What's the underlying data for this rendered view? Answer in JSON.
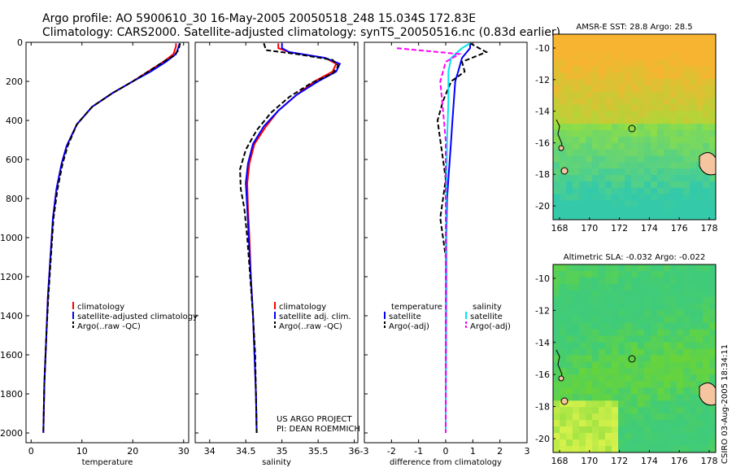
{
  "header": {
    "line1": "Argo profile: AO 5900610_30 16-May-2005 20050518_248 15.034S 172.83E",
    "line2": "Climatology: CARS2000. Satellite-adjusted climatology: synTS_20050516.nc (0.83d earlier)"
  },
  "side_label": "CSIRO 03-Aug-2005 18:34:11",
  "colors": {
    "climatology": "#ff0000",
    "satellite": "#0000ff",
    "argo": "#000000",
    "salinity_satellite": "#00e5ee",
    "salinity_argo": "#ff00ff"
  },
  "chart_data": [
    {
      "type": "line",
      "xlabel": "temperature",
      "ylabel": "",
      "xlim": [
        -1,
        31
      ],
      "ylim": [
        2050,
        0
      ],
      "xticks": [
        0,
        10,
        20,
        30
      ],
      "yticks": [
        0,
        200,
        400,
        600,
        800,
        1000,
        1200,
        1400,
        1600,
        1800,
        2000
      ],
      "legend": [
        "climatology",
        "satellite-adjusted climatology",
        "Argo(..raw -QC)"
      ],
      "series": [
        {
          "name": "climatology",
          "color": "#ff0000",
          "dash": "",
          "values": [
            [
              28.5,
              5
            ],
            [
              28.5,
              20
            ],
            [
              28,
              60
            ],
            [
              26,
              100
            ],
            [
              23,
              150
            ],
            [
              20,
              200
            ],
            [
              16,
              260
            ],
            [
              12,
              330
            ],
            [
              9,
              420
            ],
            [
              7,
              530
            ],
            [
              6,
              620
            ],
            [
              5,
              750
            ],
            [
              4.3,
              900
            ],
            [
              3.8,
              1100
            ],
            [
              3.3,
              1300
            ],
            [
              3,
              1500
            ],
            [
              2.6,
              1750
            ],
            [
              2.4,
              2000
            ]
          ]
        },
        {
          "name": "satellite-adjusted climatology",
          "color": "#0000ff",
          "dash": "",
          "values": [
            [
              29.2,
              5
            ],
            [
              29,
              25
            ],
            [
              28.5,
              60
            ],
            [
              26.5,
              100
            ],
            [
              23.5,
              150
            ],
            [
              20,
              200
            ],
            [
              16,
              260
            ],
            [
              12,
              330
            ],
            [
              9,
              420
            ],
            [
              7,
              530
            ],
            [
              6,
              620
            ],
            [
              5,
              750
            ],
            [
              4.3,
              900
            ],
            [
              3.8,
              1100
            ],
            [
              3.3,
              1300
            ],
            [
              3,
              1500
            ],
            [
              2.6,
              1750
            ],
            [
              2.4,
              2000
            ]
          ]
        },
        {
          "name": "Argo(..raw -QC)",
          "color": "#000000",
          "dash": "6,3",
          "values": [
            [
              29.3,
              5
            ],
            [
              29,
              40
            ],
            [
              28,
              70
            ],
            [
              26,
              100
            ],
            [
              23,
              150
            ],
            [
              20,
              200
            ],
            [
              16,
              260
            ],
            [
              12,
              330
            ],
            [
              9,
              420
            ],
            [
              7.2,
              530
            ],
            [
              6.2,
              620
            ],
            [
              5.2,
              750
            ],
            [
              4.4,
              900
            ],
            [
              3.9,
              1100
            ],
            [
              3.4,
              1300
            ],
            [
              3,
              1500
            ],
            [
              2.6,
              1750
            ],
            [
              2.4,
              2000
            ]
          ]
        }
      ]
    },
    {
      "type": "line",
      "xlabel": "salinity",
      "ylabel": "",
      "xlim": [
        33.8,
        36.05
      ],
      "ylim": [
        2050,
        0
      ],
      "xticks": [
        34,
        34.5,
        35,
        35.5,
        36
      ],
      "annotation": [
        "US ARGO PROJECT",
        "PI: DEAN ROEMMICH"
      ],
      "legend": [
        "climatology",
        "satellite adj. clim.",
        "Argo(..raw -QC)"
      ],
      "series": [
        {
          "name": "climatology",
          "color": "#ff0000",
          "dash": "",
          "values": [
            [
              34.95,
              5
            ],
            [
              34.95,
              30
            ],
            [
              35.1,
              50
            ],
            [
              35.6,
              80
            ],
            [
              35.75,
              110
            ],
            [
              35.7,
              150
            ],
            [
              35.45,
              200
            ],
            [
              35.2,
              270
            ],
            [
              34.95,
              350
            ],
            [
              34.78,
              430
            ],
            [
              34.62,
              520
            ],
            [
              34.55,
              620
            ],
            [
              34.52,
              720
            ],
            [
              34.53,
              850
            ],
            [
              34.55,
              1000
            ],
            [
              34.57,
              1200
            ],
            [
              34.6,
              1400
            ],
            [
              34.62,
              1600
            ],
            [
              34.64,
              1800
            ],
            [
              34.65,
              2000
            ]
          ]
        },
        {
          "name": "satellite adj. clim.",
          "color": "#0000ff",
          "dash": "",
          "values": [
            [
              35,
              5
            ],
            [
              35,
              30
            ],
            [
              35.1,
              50
            ],
            [
              35.6,
              80
            ],
            [
              35.8,
              110
            ],
            [
              35.75,
              150
            ],
            [
              35.5,
              200
            ],
            [
              35.2,
              270
            ],
            [
              34.95,
              350
            ],
            [
              34.75,
              430
            ],
            [
              34.6,
              520
            ],
            [
              34.53,
              620
            ],
            [
              34.5,
              720
            ],
            [
              34.52,
              850
            ],
            [
              34.54,
              1000
            ],
            [
              34.57,
              1200
            ],
            [
              34.6,
              1400
            ],
            [
              34.62,
              1600
            ],
            [
              34.64,
              1800
            ],
            [
              34.65,
              2000
            ]
          ]
        },
        {
          "name": "Argo(..raw -QC)",
          "color": "#000000",
          "dash": "6,3",
          "values": [
            [
              34.75,
              5
            ],
            [
              34.78,
              40
            ],
            [
              35.2,
              60
            ],
            [
              35.7,
              90
            ],
            [
              35.78,
              120
            ],
            [
              35.7,
              160
            ],
            [
              35.4,
              210
            ],
            [
              35.1,
              280
            ],
            [
              34.85,
              360
            ],
            [
              34.65,
              450
            ],
            [
              34.5,
              550
            ],
            [
              34.42,
              650
            ],
            [
              34.43,
              750
            ],
            [
              34.48,
              850
            ],
            [
              34.52,
              1000
            ],
            [
              34.56,
              1200
            ],
            [
              34.6,
              1400
            ],
            [
              34.63,
              1600
            ],
            [
              34.64,
              1800
            ],
            [
              34.65,
              2000
            ]
          ]
        }
      ]
    },
    {
      "type": "line",
      "xlabel": "difference from climatology",
      "ylabel": "",
      "xlim": [
        -3,
        3
      ],
      "ylim": [
        2050,
        0
      ],
      "xticks": [
        -3,
        -2,
        -1,
        0,
        1,
        2,
        3
      ],
      "legend_temperature": [
        "temperature",
        "satellite",
        "Argo(-adj)"
      ],
      "legend_salinity": [
        "salinity",
        "satellite",
        "Argo(-adj)"
      ],
      "series": [
        {
          "name": "satellite",
          "color": "#0000ff",
          "dash": "",
          "values": [
            [
              0.9,
              5
            ],
            [
              0.9,
              30
            ],
            [
              0.6,
              80
            ],
            [
              0.5,
              130
            ],
            [
              0.35,
              200
            ],
            [
              0.3,
              300
            ],
            [
              0.25,
              400
            ],
            [
              0.2,
              500
            ],
            [
              0.15,
              600
            ],
            [
              0.1,
              700
            ],
            [
              0.05,
              800
            ],
            [
              0.02,
              1000
            ],
            [
              0,
              2000
            ]
          ]
        },
        {
          "name": "Argo(-adj)",
          "color": "#000000",
          "dash": "6,3",
          "values": [
            [
              0.9,
              5
            ],
            [
              1.5,
              50
            ],
            [
              0.6,
              100
            ],
            [
              0.7,
              150
            ],
            [
              0.2,
              200
            ],
            [
              -0.1,
              300
            ],
            [
              -0.3,
              400
            ],
            [
              -0.2,
              500
            ],
            [
              -0.1,
              600
            ],
            [
              0,
              700
            ],
            [
              -0.1,
              800
            ],
            [
              -0.2,
              900
            ],
            [
              -0.1,
              1000
            ],
            [
              0,
              1100
            ],
            [
              0,
              2000
            ]
          ]
        },
        {
          "name": "satellite",
          "color": "#00e5ee",
          "dash": "",
          "values": [
            [
              0.9,
              5
            ],
            [
              0.6,
              30
            ],
            [
              0.2,
              80
            ],
            [
              0.1,
              150
            ],
            [
              0.1,
              300
            ],
            [
              0.05,
              500
            ],
            [
              0.02,
              800
            ],
            [
              0,
              1200
            ],
            [
              0,
              2000
            ]
          ]
        },
        {
          "name": "Argo(-adj)",
          "color": "#ff00ff",
          "dash": "6,3",
          "values": [
            [
              -1.8,
              30
            ],
            [
              0.5,
              60
            ],
            [
              0,
              100
            ],
            [
              -0.2,
              200
            ],
            [
              -0.1,
              350
            ],
            [
              0,
              500
            ],
            [
              0,
              2000
            ]
          ]
        }
      ]
    }
  ],
  "maps": [
    {
      "title": "AMSR-E SST: 28.8 Argo: 28.5",
      "xticks": [
        "168",
        "170",
        "172",
        "174",
        "176",
        "178"
      ],
      "yticks": [
        "-10",
        "-12",
        "-14",
        "-16",
        "-18",
        "-20"
      ],
      "colors": {
        "warm": "#f7b430",
        "mid": "#9ae03a",
        "cool": "#34c9a9"
      }
    },
    {
      "title": "Altimetric SLA: -0.032 Argo: -0.022",
      "xticks": [
        "168",
        "170",
        "172",
        "174",
        "176",
        "178"
      ],
      "yticks": [
        "-10",
        "-12",
        "-14",
        "-16",
        "-18",
        "-20"
      ],
      "colors": {
        "mid": "#68d43a",
        "cool": "#35c98a",
        "high": "#d8f24c"
      }
    }
  ]
}
